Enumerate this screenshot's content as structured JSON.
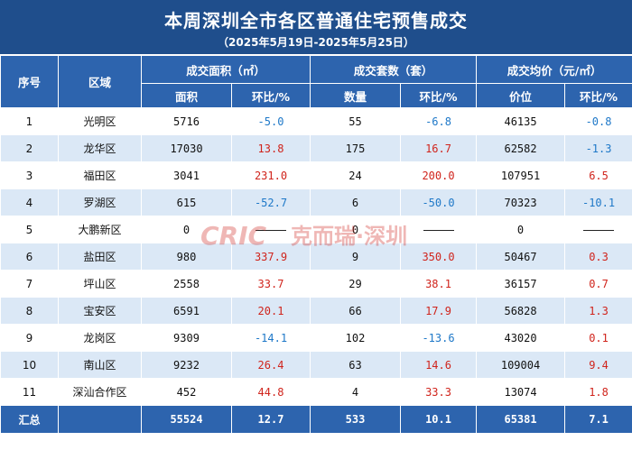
{
  "header": {
    "title": "本周深圳全市各区普通住宅预售成交",
    "subtitle": "（2025年5月19日-2025年5月25日）"
  },
  "columns": {
    "index": "序号",
    "district": "区域",
    "area_group": "成交面积（㎡）",
    "units_group": "成交套数（套）",
    "price_group": "成交均价（元/㎡）",
    "area": "面积",
    "area_change": "环比/%",
    "units": "数量",
    "units_change": "环比/%",
    "price": "价位",
    "price_change": "环比/%"
  },
  "rows": [
    {
      "index": "1",
      "district": "光明区",
      "area": "5716",
      "area_change": "-5.0",
      "units": "55",
      "units_change": "-6.8",
      "price": "46135",
      "price_change": "-0.8"
    },
    {
      "index": "2",
      "district": "龙华区",
      "area": "17030",
      "area_change": "13.8",
      "units": "175",
      "units_change": "16.7",
      "price": "62582",
      "price_change": "-1.3"
    },
    {
      "index": "3",
      "district": "福田区",
      "area": "3041",
      "area_change": "231.0",
      "units": "24",
      "units_change": "200.0",
      "price": "107951",
      "price_change": "6.5"
    },
    {
      "index": "4",
      "district": "罗湖区",
      "area": "615",
      "area_change": "-52.7",
      "units": "6",
      "units_change": "-50.0",
      "price": "70323",
      "price_change": "-10.1"
    },
    {
      "index": "5",
      "district": "大鹏新区",
      "area": "0",
      "area_change": "",
      "units": "0",
      "units_change": "",
      "price": "0",
      "price_change": ""
    },
    {
      "index": "6",
      "district": "盐田区",
      "area": "980",
      "area_change": "337.9",
      "units": "9",
      "units_change": "350.0",
      "price": "50467",
      "price_change": "0.3"
    },
    {
      "index": "7",
      "district": "坪山区",
      "area": "2558",
      "area_change": "33.7",
      "units": "29",
      "units_change": "38.1",
      "price": "36157",
      "price_change": "0.7"
    },
    {
      "index": "8",
      "district": "宝安区",
      "area": "6591",
      "area_change": "20.1",
      "units": "66",
      "units_change": "17.9",
      "price": "56828",
      "price_change": "1.3"
    },
    {
      "index": "9",
      "district": "龙岗区",
      "area": "9309",
      "area_change": "-14.1",
      "units": "102",
      "units_change": "-13.6",
      "price": "43020",
      "price_change": "0.1"
    },
    {
      "index": "10",
      "district": "南山区",
      "area": "9232",
      "area_change": "26.4",
      "units": "63",
      "units_change": "14.6",
      "price": "109004",
      "price_change": "9.4"
    },
    {
      "index": "11",
      "district": "深汕合作区",
      "area": "452",
      "area_change": "44.8",
      "units": "4",
      "units_change": "33.3",
      "price": "13074",
      "price_change": "1.8"
    }
  ],
  "total": {
    "label": "汇总",
    "area": "55524",
    "area_change": "12.7",
    "units": "533",
    "units_change": "10.1",
    "price": "65381",
    "price_change": "7.1"
  },
  "colors": {
    "header_bg": "#2d64ae",
    "title_bg": "#1f4e8c",
    "stripe": "#dbe8f6",
    "positive": "#d0241c",
    "negative": "#1e78c8"
  },
  "watermark": {
    "logo": "CRIC",
    "text": "克而瑞·深圳"
  }
}
